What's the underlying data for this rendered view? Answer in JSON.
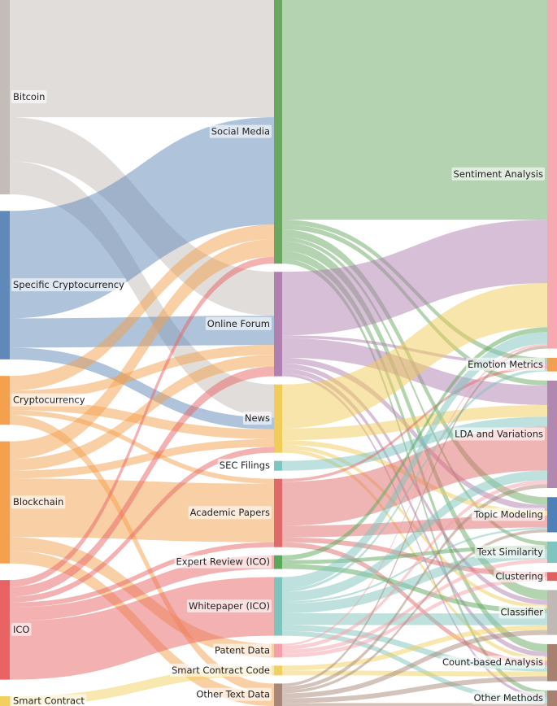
{
  "chart_data": {
    "type": "sankey",
    "nodes": [
      [
        {
          "name": "Bitcoin",
          "color": "#c4bcb8"
        },
        {
          "name": "Specific Cryptocurrency",
          "color": "#6088b8"
        },
        {
          "name": "Cryptocurrency",
          "color": "#f4a04c"
        },
        {
          "name": "Blockchain",
          "color": "#f4a04c"
        },
        {
          "name": "ICO",
          "color": "#e86464"
        },
        {
          "name": "Smart Contract",
          "color": "#f2d060"
        }
      ],
      [
        {
          "name": "Social Media",
          "color": "#6aa862"
        },
        {
          "name": "Online Forum",
          "color": "#b080b0"
        },
        {
          "name": "News",
          "color": "#f0cc5a"
        },
        {
          "name": "SEC Filings",
          "color": "#7ec4c0"
        },
        {
          "name": "Academic Papers",
          "color": "#e06a6a"
        },
        {
          "name": "Expert Review (ICO)",
          "color": "#5aa85a"
        },
        {
          "name": "Whitepaper (ICO)",
          "color": "#7fc4bc"
        },
        {
          "name": "Patent Data",
          "color": "#f5a0a8"
        },
        {
          "name": "Smart Contract Code",
          "color": "#f2d060"
        },
        {
          "name": "Other Text Data",
          "color": "#a88878"
        }
      ],
      [
        {
          "name": "Sentiment Analysis",
          "color": "#f8a8b0"
        },
        {
          "name": "Emotion Metrics",
          "color": "#f0a050"
        },
        {
          "name": "LDA and Variations",
          "color": "#b088b0"
        },
        {
          "name": "Topic Modeling",
          "color": "#5080b8"
        },
        {
          "name": "Text Similarity",
          "color": "#80c4c0"
        },
        {
          "name": "Clustering",
          "color": "#e06060"
        },
        {
          "name": "Classifier",
          "color": "#c0b8b4"
        },
        {
          "name": "Count-based Analysis",
          "color": "#a88070"
        },
        {
          "name": "Other Methods",
          "color": "#a88070"
        }
      ]
    ],
    "links": [
      {
        "source": "Bitcoin",
        "target": "Social Media",
        "value": 120
      },
      {
        "source": "Bitcoin",
        "target": "Online Forum",
        "value": 45
      },
      {
        "source": "Bitcoin",
        "target": "News",
        "value": 34
      },
      {
        "source": "Specific Cryptocurrency",
        "target": "Social Media",
        "value": 110
      },
      {
        "source": "Specific Cryptocurrency",
        "target": "Online Forum",
        "value": 30
      },
      {
        "source": "Specific Cryptocurrency",
        "target": "News",
        "value": 12
      },
      {
        "source": "Cryptocurrency",
        "target": "Social Media",
        "value": 15
      },
      {
        "source": "Cryptocurrency",
        "target": "Online Forum",
        "value": 10
      },
      {
        "source": "Cryptocurrency",
        "target": "News",
        "value": 10
      },
      {
        "source": "Cryptocurrency",
        "target": "Academic Papers",
        "value": 5
      },
      {
        "source": "Cryptocurrency",
        "target": "Other Text Data",
        "value": 10
      },
      {
        "source": "Blockchain",
        "target": "Social Media",
        "value": 18
      },
      {
        "source": "Blockchain",
        "target": "Online Forum",
        "value": 12
      },
      {
        "source": "Blockchain",
        "target": "News",
        "value": 8
      },
      {
        "source": "Blockchain",
        "target": "Academic Papers",
        "value": 60
      },
      {
        "source": "Blockchain",
        "target": "Patent Data",
        "value": 14
      },
      {
        "source": "Blockchain",
        "target": "Other Text Data",
        "value": 13
      },
      {
        "source": "ICO",
        "target": "Social Media",
        "value": 7
      },
      {
        "source": "ICO",
        "target": "Online Forum",
        "value": 10
      },
      {
        "source": "ICO",
        "target": "News",
        "value": 6
      },
      {
        "source": "ICO",
        "target": "Academic Papers",
        "value": 5
      },
      {
        "source": "ICO",
        "target": "Expert Review (ICO)",
        "value": 14
      },
      {
        "source": "ICO",
        "target": "Whitepaper (ICO)",
        "value": 60
      },
      {
        "source": "Smart Contract",
        "target": "Smart Contract Code",
        "value": 10
      },
      {
        "source": "Social Media",
        "target": "Sentiment Analysis",
        "value": 225
      },
      {
        "source": "Social Media",
        "target": "Emotion Metrics",
        "value": 5
      },
      {
        "source": "Social Media",
        "target": "LDA and Variations",
        "value": 5
      },
      {
        "source": "Social Media",
        "target": "Topic Modeling",
        "value": 8
      },
      {
        "source": "Social Media",
        "target": "Text Similarity",
        "value": 4
      },
      {
        "source": "Social Media",
        "target": "Classifier",
        "value": 10
      },
      {
        "source": "Social Media",
        "target": "Count-based Analysis",
        "value": 8
      },
      {
        "source": "Social Media",
        "target": "Other Methods",
        "value": 5
      },
      {
        "source": "Online Forum",
        "target": "Sentiment Analysis",
        "value": 65
      },
      {
        "source": "Online Forum",
        "target": "Emotion Metrics",
        "value": 3
      },
      {
        "source": "Online Forum",
        "target": "LDA and Variations",
        "value": 20
      },
      {
        "source": "Online Forum",
        "target": "Topic Modeling",
        "value": 6
      },
      {
        "source": "Online Forum",
        "target": "Classifier",
        "value": 5
      },
      {
        "source": "Online Forum",
        "target": "Count-based Analysis",
        "value": 5
      },
      {
        "source": "Online Forum",
        "target": "Other Methods",
        "value": 3
      },
      {
        "source": "News",
        "target": "Sentiment Analysis",
        "value": 45
      },
      {
        "source": "News",
        "target": "LDA and Variations",
        "value": 12
      },
      {
        "source": "News",
        "target": "Topic Modeling",
        "value": 5
      },
      {
        "source": "News",
        "target": "Classifier",
        "value": 4
      },
      {
        "source": "News",
        "target": "Count-based Analysis",
        "value": 4
      },
      {
        "source": "SEC Filings",
        "target": "LDA and Variations",
        "value": 10
      },
      {
        "source": "Academic Papers",
        "target": "Emotion Metrics",
        "value": 3
      },
      {
        "source": "Academic Papers",
        "target": "LDA and Variations",
        "value": 45
      },
      {
        "source": "Academic Papers",
        "target": "Topic Modeling",
        "value": 12
      },
      {
        "source": "Academic Papers",
        "target": "Clustering",
        "value": 5
      },
      {
        "source": "Academic Papers",
        "target": "Count-based Analysis",
        "value": 5
      },
      {
        "source": "Expert Review (ICO)",
        "target": "Sentiment Analysis",
        "value": 5
      },
      {
        "source": "Expert Review (ICO)",
        "target": "Text Similarity",
        "value": 4
      },
      {
        "source": "Expert Review (ICO)",
        "target": "Classifier",
        "value": 5
      },
      {
        "source": "Whitepaper (ICO)",
        "target": "Sentiment Analysis",
        "value": 12
      },
      {
        "source": "Whitepaper (ICO)",
        "target": "Emotion Metrics",
        "value": 3
      },
      {
        "source": "Whitepaper (ICO)",
        "target": "LDA and Variations",
        "value": 10
      },
      {
        "source": "Whitepaper (ICO)",
        "target": "Topic Modeling",
        "value": 2
      },
      {
        "source": "Whitepaper (ICO)",
        "target": "Text Similarity",
        "value": 10
      },
      {
        "source": "Whitepaper (ICO)",
        "target": "Classifier",
        "value": 12
      },
      {
        "source": "Whitepaper (ICO)",
        "target": "Count-based Analysis",
        "value": 6
      },
      {
        "source": "Whitepaper (ICO)",
        "target": "Other Methods",
        "value": 5
      },
      {
        "source": "Patent Data",
        "target": "Sentiment Analysis",
        "value": 2
      },
      {
        "source": "Patent Data",
        "target": "LDA and Variations",
        "value": 4
      },
      {
        "source": "Patent Data",
        "target": "Text Similarity",
        "value": 4
      },
      {
        "source": "Patent Data",
        "target": "Clustering",
        "value": 4
      },
      {
        "source": "Smart Contract Code",
        "target": "Classifier",
        "value": 5
      },
      {
        "source": "Smart Contract Code",
        "target": "Count-based Analysis",
        "value": 5
      },
      {
        "source": "Other Text Data",
        "target": "Sentiment Analysis",
        "value": 3
      },
      {
        "source": "Other Text Data",
        "target": "LDA and Variations",
        "value": 4
      },
      {
        "source": "Other Text Data",
        "target": "Topic Modeling",
        "value": 3
      },
      {
        "source": "Other Text Data",
        "target": "Classifier",
        "value": 5
      },
      {
        "source": "Other Text Data",
        "target": "Count-based Analysis",
        "value": 5
      },
      {
        "source": "Other Text Data",
        "target": "Other Methods",
        "value": 3
      }
    ]
  }
}
